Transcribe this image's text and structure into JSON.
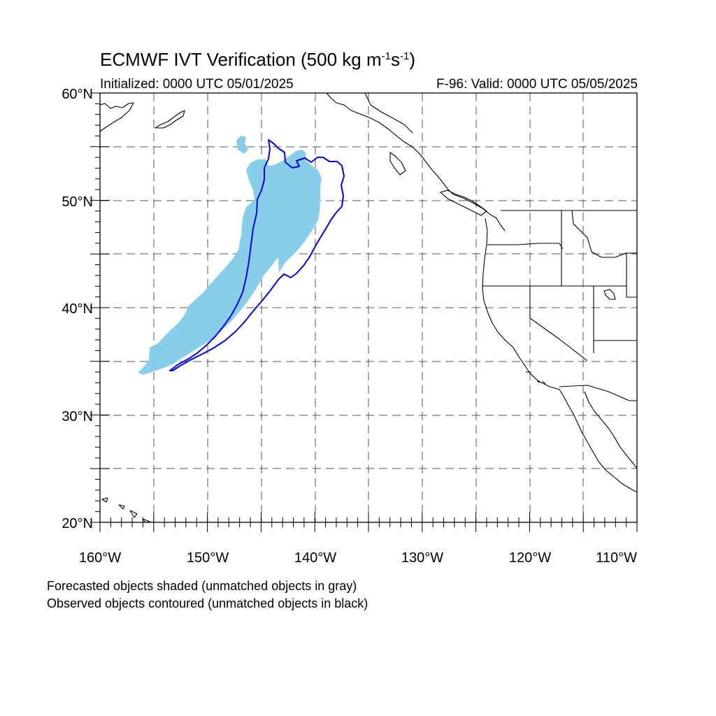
{
  "title": {
    "main": "ECMWF IVT Verification (500 kg m",
    "sup1": "-1",
    "mid": "s",
    "sup2": "-1",
    "end": ")"
  },
  "subtitle_left": "Initialized: 0000 UTC 05/01/2025",
  "subtitle_right": "F-96: Valid: 0000 UTC 05/05/2025",
  "lat_labels": [
    "60°N",
    "50°N",
    "40°N",
    "30°N",
    "20°N"
  ],
  "lon_labels": [
    "160°W",
    "150°W",
    "140°W",
    "130°W",
    "120°W",
    "110°W"
  ],
  "map_extent": {
    "lon_min": -160,
    "lon_max": -110,
    "lat_min": 20,
    "lat_max": 60
  },
  "gridlines": {
    "lon_step_deg": 5,
    "lat_step_deg": 5,
    "style": "dashed"
  },
  "colors": {
    "forecast_fill": "#87ceeb",
    "observed_contour": "#0000e6",
    "coastline": "#000000",
    "grid": "#555555"
  },
  "notes": [
    "Forecasted objects shaded (unmatched objects in gray)",
    "Observed objects contoured (unmatched objects in black)"
  ]
}
